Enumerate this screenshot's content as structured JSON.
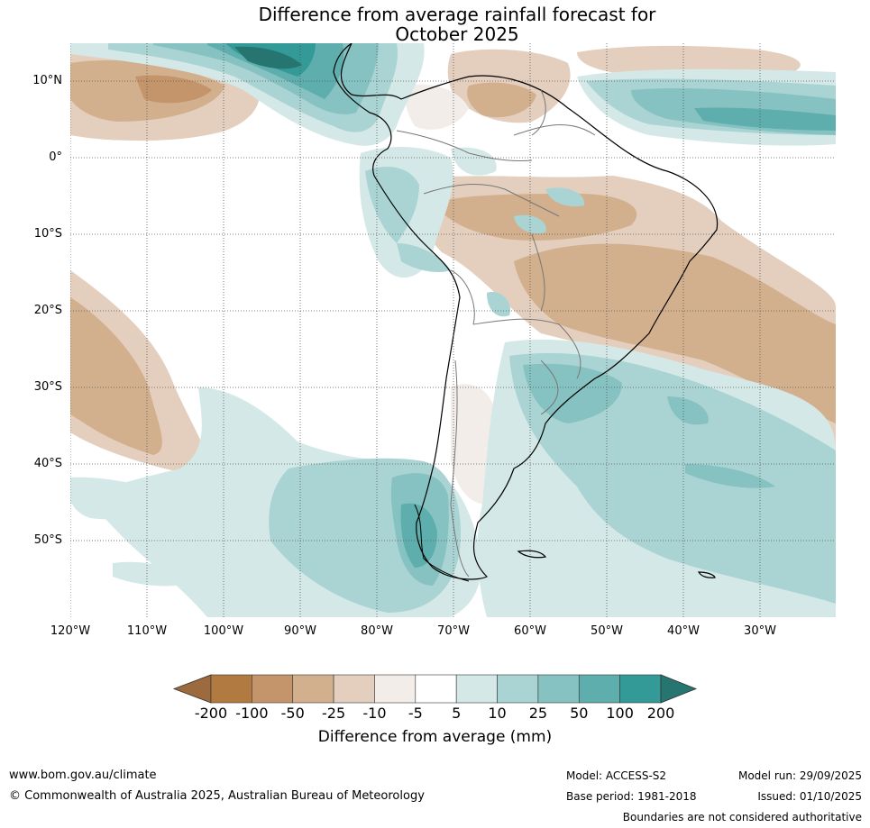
{
  "title": {
    "line1": "Difference from average rainfall forecast for",
    "line2": "October 2025"
  },
  "lat_labels": [
    "10°N",
    "0°",
    "10°S",
    "20°S",
    "30°S",
    "40°S",
    "50°S"
  ],
  "lon_labels": [
    "120°W",
    "110°W",
    "100°W",
    "90°W",
    "80°W",
    "70°W",
    "60°W",
    "50°W",
    "40°W",
    "30°W"
  ],
  "colorbar": {
    "ticks": [
      "-200",
      "-100",
      "-50",
      "-25",
      "-10",
      "-5",
      "5",
      "10",
      "25",
      "50",
      "100",
      "200"
    ],
    "colors": [
      "#9c6a3c",
      "#b07a41",
      "#c4946a",
      "#d2b08e",
      "#e4cfbe",
      "#f2ede8",
      "#ffffff",
      "#d4e9e7",
      "#aad4d3",
      "#86c2c1",
      "#5eaead",
      "#339a97",
      "#277571"
    ],
    "title": "Difference from average (mm)"
  },
  "footer": {
    "url": "www.bom.gov.au/climate",
    "copyright": "© Commonwealth of Australia 2025, Australian Bureau of Meteorology",
    "model": "Model: ACCESS-S2",
    "base_period": "Base period: 1981-2018",
    "model_run": "Model run: 29/09/2025",
    "issued": "Issued: 01/10/2025",
    "boundaries": "Boundaries are not considered authoritative"
  }
}
